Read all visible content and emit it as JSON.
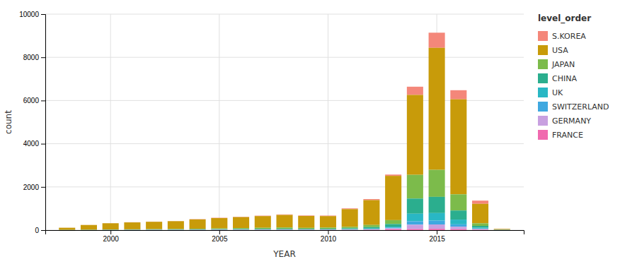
{
  "chart_data": {
    "type": "bar",
    "stacked": true,
    "x": [
      1998,
      1999,
      2000,
      2001,
      2002,
      2003,
      2004,
      2005,
      2006,
      2007,
      2008,
      2009,
      2010,
      2011,
      2012,
      2013,
      2014,
      2015,
      2016,
      2017,
      2018
    ],
    "series": [
      {
        "name": "S.KOREA",
        "color": "#F4877A",
        "values": [
          2,
          3,
          5,
          8,
          8,
          10,
          12,
          15,
          18,
          20,
          25,
          22,
          25,
          35,
          50,
          60,
          380,
          700,
          420,
          150,
          12
        ]
      },
      {
        "name": "USA",
        "color": "#C89B0A",
        "values": [
          100,
          220,
          290,
          320,
          340,
          360,
          430,
          480,
          510,
          540,
          580,
          550,
          530,
          820,
          1150,
          2050,
          3700,
          5650,
          4400,
          900,
          30
        ]
      },
      {
        "name": "JAPAN",
        "color": "#7CBB4B",
        "values": [
          4,
          8,
          12,
          15,
          18,
          22,
          28,
          32,
          40,
          48,
          55,
          48,
          52,
          65,
          100,
          180,
          1100,
          1250,
          750,
          120,
          8
        ]
      },
      {
        "name": "CHINA",
        "color": "#2BAE8E",
        "values": [
          2,
          4,
          6,
          8,
          10,
          12,
          15,
          17,
          20,
          24,
          28,
          24,
          28,
          40,
          65,
          120,
          700,
          750,
          420,
          80,
          6
        ]
      },
      {
        "name": "UK",
        "color": "#29B7C4",
        "values": [
          1,
          2,
          4,
          5,
          6,
          7,
          8,
          10,
          11,
          13,
          15,
          12,
          14,
          16,
          25,
          50,
          350,
          350,
          220,
          45,
          4
        ]
      },
      {
        "name": "SWITZERLAND",
        "color": "#3FA8E0",
        "values": [
          1,
          1,
          2,
          3,
          4,
          4,
          5,
          6,
          7,
          8,
          8,
          7,
          8,
          10,
          16,
          32,
          160,
          180,
          110,
          25,
          2
        ]
      },
      {
        "name": "GERMANY",
        "color": "#C8A0E0",
        "values": [
          1,
          1,
          2,
          3,
          4,
          4,
          5,
          6,
          7,
          8,
          8,
          7,
          8,
          10,
          16,
          40,
          200,
          200,
          115,
          28,
          2
        ]
      },
      {
        "name": "FRANCE",
        "color": "#F06AAF",
        "values": [
          1,
          1,
          2,
          3,
          4,
          4,
          5,
          6,
          7,
          8,
          8,
          7,
          8,
          10,
          16,
          40,
          50,
          60,
          42,
          18,
          2
        ]
      }
    ],
    "xlabel": "YEAR",
    "ylabel": "count",
    "legend_title": "level_order",
    "xlim": [
      1997,
      2019
    ],
    "xticks": [
      2000,
      2005,
      2010,
      2015
    ],
    "ylim": [
      0,
      10000
    ],
    "yticks": [
      0,
      2000,
      4000,
      6000,
      8000,
      10000
    ],
    "grid": true,
    "legend": "right"
  }
}
